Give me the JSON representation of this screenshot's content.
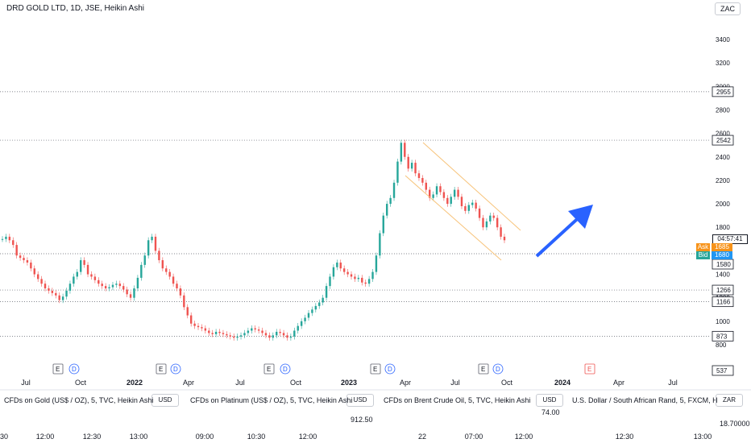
{
  "chart": {
    "title": "DRD GOLD LTD, 1D, JSE, Heikin Ashi",
    "currency_button": "ZAC",
    "y_ticks": [
      "3400",
      "3200",
      "3000",
      "2800",
      "2600",
      "2400",
      "2200",
      "2000",
      "1800",
      "1400",
      "1200",
      "1000",
      "800"
    ],
    "price_tags": [
      {
        "value": "2955",
        "style": "light"
      },
      {
        "value": "2542",
        "style": "light"
      },
      {
        "value": "1580",
        "style": "light"
      },
      {
        "value": "1266",
        "style": "light"
      },
      {
        "value": "1166",
        "style": "light"
      },
      {
        "value": "873",
        "style": "light"
      },
      {
        "value": "537",
        "style": "light"
      }
    ],
    "countdown": "04:57:41",
    "ask_label": "Ask",
    "ask_value": "1685",
    "bid_label": "Bid",
    "bid_value": "1680",
    "x_ticks": [
      "Jul",
      "Oct",
      "2022",
      "Apr",
      "Jul",
      "Oct",
      "2023",
      "Apr",
      "Jul",
      "Oct",
      "2024",
      "Apr",
      "Jul"
    ],
    "event_badges": [
      "E",
      "D",
      "E",
      "D",
      "E",
      "D",
      "E",
      "D",
      "E",
      "D",
      "E"
    ],
    "colors": {
      "up": "#26a69a",
      "down": "#ef5350",
      "arrow": "#2962ff",
      "channel": "#f7c37a",
      "accent": "#f7931a"
    },
    "chart_data": {
      "type": "heikin-ashi",
      "series": [
        {
          "values": [
            1700,
            1720,
            1690,
            1650,
            1560,
            1540,
            1520,
            1500,
            1450,
            1400,
            1360,
            1320,
            1280,
            1260,
            1240,
            1220,
            1180,
            1210,
            1260,
            1320,
            1380,
            1420,
            1520,
            1480,
            1400,
            1380,
            1350,
            1320,
            1300,
            1280,
            1290,
            1310,
            1320,
            1300,
            1270,
            1230,
            1200,
            1280,
            1370,
            1480,
            1560,
            1690,
            1720,
            1600,
            1520,
            1450,
            1420,
            1380,
            1320,
            1280,
            1220,
            1120,
            1050,
            980,
            960,
            950,
            940,
            920,
            900,
            890,
            910,
            900,
            890,
            880,
            870,
            860,
            870,
            880,
            900,
            920,
            940,
            930,
            920,
            900,
            880,
            860,
            880,
            910,
            900,
            880,
            860,
            870,
            920,
            960,
            1000,
            1030,
            1070,
            1100,
            1130,
            1160,
            1200,
            1300,
            1380,
            1460,
            1500,
            1450,
            1420,
            1400,
            1380,
            1360,
            1370,
            1330,
            1320,
            1360,
            1420,
            1560,
            1750,
            1900,
            2000,
            2050,
            2180,
            2360,
            2520,
            2400,
            2300,
            2350,
            2260,
            2220,
            2180,
            2120,
            2050,
            2080,
            2150,
            2100,
            2050,
            2000,
            2060,
            2120,
            2060,
            1980,
            1940,
            1990,
            2010,
            1960,
            1880,
            1800,
            1850,
            1900,
            1880,
            1800,
            1720,
            1690
          ]
        }
      ]
    }
  },
  "bottom": {
    "panels": [
      {
        "title": "CFDs on Gold (US$ / OZ), 5, TVC, Heikin Ashi",
        "currency": "USD"
      },
      {
        "title": "CFDs on Platinum (US$ / OZ), 5, TVC, Heikin Ashi",
        "currency": "USD"
      },
      {
        "title": "CFDs on Brent Crude Oil, 5, TVC, Heikin Ashi",
        "currency": "USD"
      },
      {
        "title": "U.S. Dollar / South African Rand, 5, FXCM, H",
        "currency": "ZAR"
      }
    ],
    "values": [
      "912.50",
      "74.00",
      "18.70000"
    ],
    "time_labels": [
      "30",
      "12:00",
      "12:30",
      "13:00",
      "09:00",
      "10:30",
      "12:00",
      "22",
      "07:00",
      "12:00",
      "12:30",
      "13:00"
    ]
  }
}
